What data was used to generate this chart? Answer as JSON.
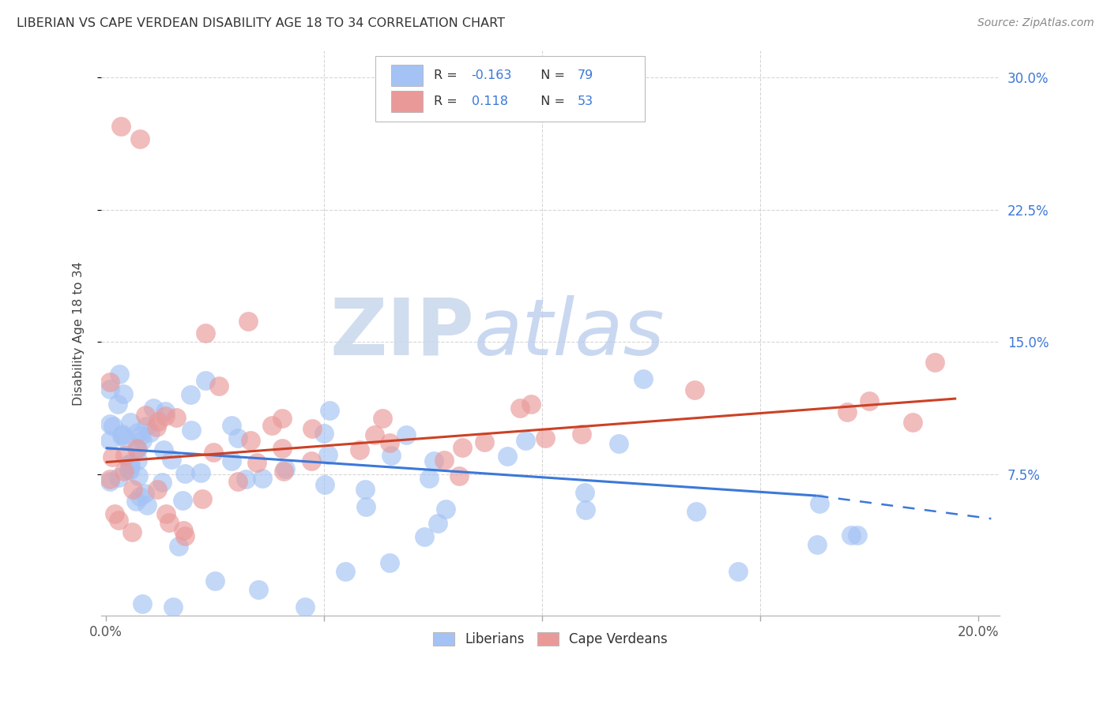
{
  "title": "LIBERIAN VS CAPE VERDEAN DISABILITY AGE 18 TO 34 CORRELATION CHART",
  "source": "Source: ZipAtlas.com",
  "ylabel": "Disability Age 18 to 34",
  "xlim": [
    -0.001,
    0.205
  ],
  "ylim": [
    -0.005,
    0.315
  ],
  "x_ticks": [
    0.0,
    0.05,
    0.1,
    0.15,
    0.2
  ],
  "x_tick_labels_show": [
    "0.0%",
    "",
    "",
    "",
    "20.0%"
  ],
  "y_ticks": [
    0.075,
    0.15,
    0.225,
    0.3
  ],
  "y_tick_labels_right": [
    "7.5%",
    "15.0%",
    "22.5%",
    "30.0%"
  ],
  "liberian_color": "#a4c2f4",
  "capeverdean_color": "#ea9999",
  "trend_liberian_color": "#3c78d8",
  "trend_capeverdean_color": "#cc4125",
  "R_liberian": -0.163,
  "N_liberian": 79,
  "R_capeverdean": 0.118,
  "N_capeverdean": 53,
  "legend_label_1": "Liberians",
  "legend_label_2": "Cape Verdeans",
  "lib_trend_x0": 0.0,
  "lib_trend_y0": 0.09,
  "lib_trend_x1": 0.163,
  "lib_trend_y1": 0.063,
  "lib_trend_dash_x1": 0.203,
  "lib_trend_dash_y1": 0.05,
  "cv_trend_x0": 0.0,
  "cv_trend_y0": 0.082,
  "cv_trend_x1": 0.195,
  "cv_trend_y1": 0.118,
  "background_color": "#ffffff",
  "grid_color": "#cccccc",
  "right_axis_color": "#3c78d8",
  "watermark_zip_color": "#c9d9f0",
  "watermark_atlas_color": "#c5d9f1"
}
